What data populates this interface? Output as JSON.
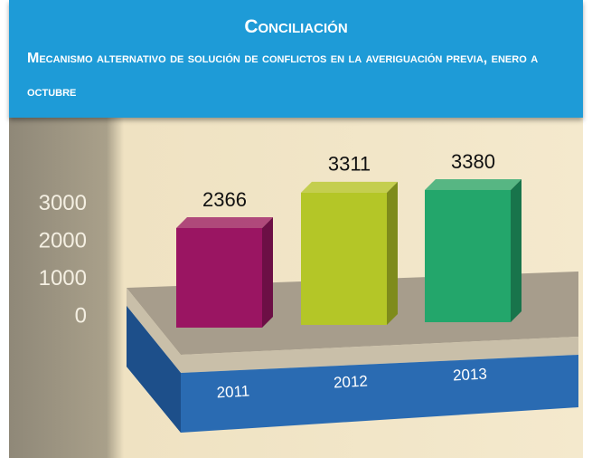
{
  "chart_data": {
    "type": "bar3d",
    "title": "Conciliación",
    "subtitle": "Mecanismo alternativo de solución de conflictos en la averiguación previa, enero a octubre",
    "categories": [
      "2011",
      "2012",
      "2013"
    ],
    "values": [
      2366,
      3311,
      3380
    ],
    "colors": [
      "#9a1562",
      "#b4c627",
      "#23a66b"
    ],
    "ylim": [
      0,
      3500
    ],
    "yticks": [
      0,
      1000,
      2000,
      3000
    ]
  }
}
